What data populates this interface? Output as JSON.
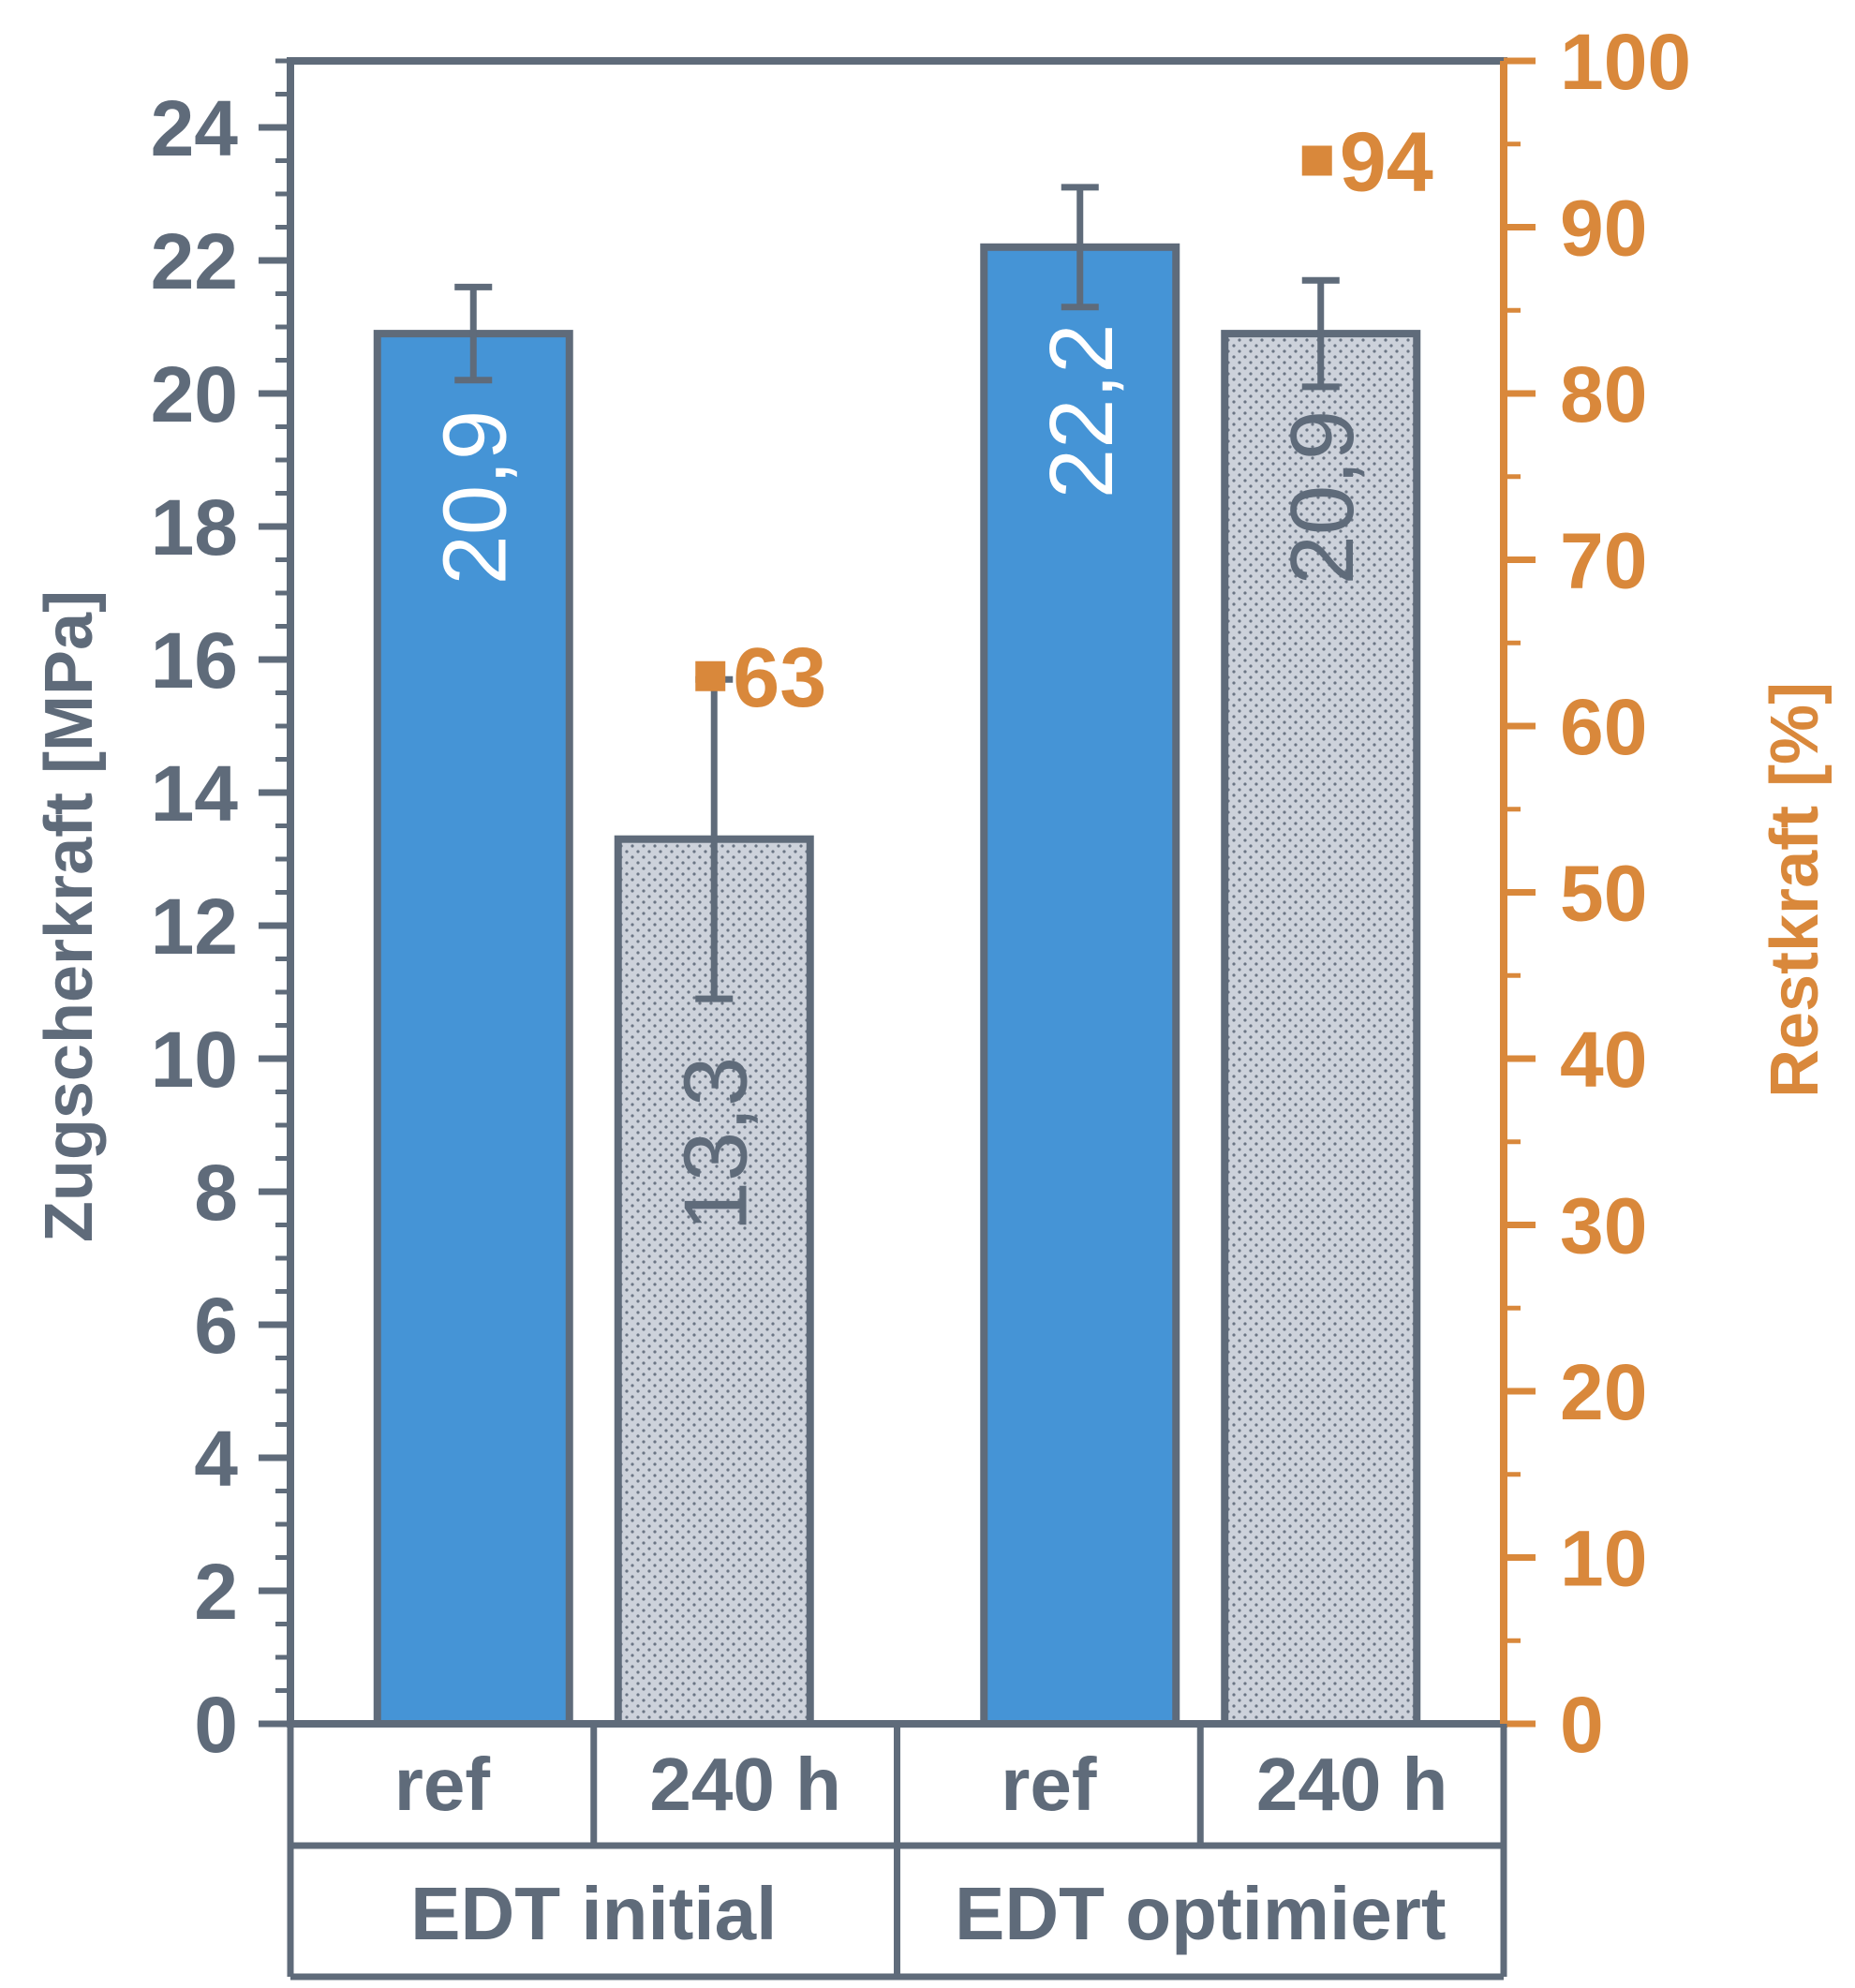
{
  "colors": {
    "axis": "#5f6b7a",
    "secondary": "#d9883b",
    "bar_ref": "#4594d6",
    "bar_aged": "#cdd2db",
    "bar_ref_label": "#ffffff",
    "bar_aged_label": "#5f6b7a",
    "background": "#ffffff"
  },
  "chart_data": {
    "type": "bar",
    "y_left": {
      "label": "Zugscherkraft [MPa]",
      "range": [
        0,
        25
      ],
      "ticks": [
        "0",
        "2",
        "4",
        "6",
        "8",
        "10",
        "12",
        "14",
        "16",
        "18",
        "20",
        "22",
        "24"
      ]
    },
    "y_right": {
      "label": "Restkraft [%]",
      "range": [
        0,
        100
      ],
      "ticks": [
        "0",
        "10",
        "20",
        "30",
        "40",
        "50",
        "60",
        "70",
        "80",
        "90",
        "100"
      ]
    },
    "groups": [
      {
        "label": "EDT initial",
        "bars": [
          {
            "category": "ref",
            "kind": "ref",
            "value": 20.9,
            "label": "20,9",
            "err_low": 20.2,
            "err_high": 21.6
          },
          {
            "category": "240 h",
            "kind": "aged",
            "value": 13.3,
            "label": "13,3",
            "err_low": 10.9,
            "err_high": 15.7
          }
        ],
        "restkraft": {
          "value": 63,
          "label": "63"
        }
      },
      {
        "label": "EDT optimiert",
        "bars": [
          {
            "category": "ref",
            "kind": "ref",
            "value": 22.2,
            "label": "22,2",
            "err_low": 21.3,
            "err_high": 23.1
          },
          {
            "category": "240 h",
            "kind": "aged",
            "value": 20.9,
            "label": "20,9",
            "err_low": 20.1,
            "err_high": 21.7
          }
        ],
        "restkraft": {
          "value": 94,
          "label": "94"
        }
      }
    ],
    "grid": false,
    "legend": "none"
  }
}
